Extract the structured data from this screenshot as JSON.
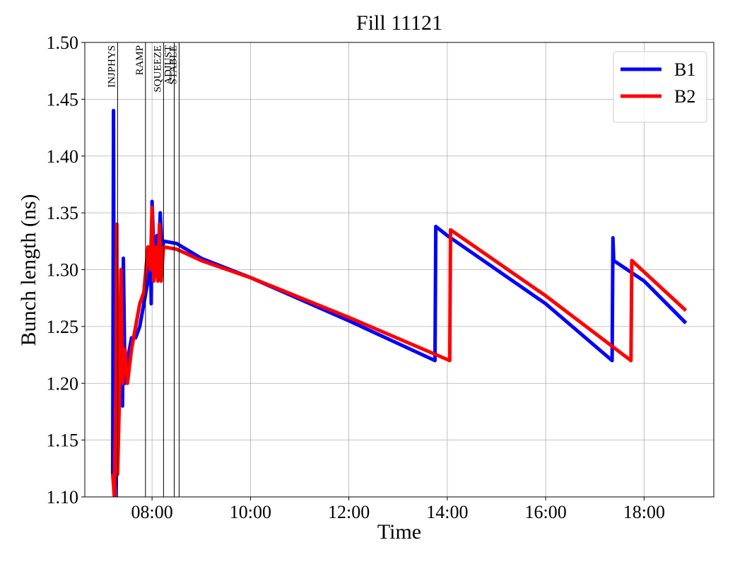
{
  "chart_data": {
    "type": "line",
    "title": "Fill 11121",
    "x_label": "Time",
    "y_label": "Bunch length (ns)",
    "xlim": [
      "06:38",
      "19:25"
    ],
    "xticks": [
      "08:00",
      "10:00",
      "12:00",
      "14:00",
      "16:00",
      "18:00"
    ],
    "ylim": [
      1.1,
      1.5
    ],
    "yticks": [
      {
        "value": 1.1,
        "label": "1.10"
      },
      1.15,
      {
        "value": 1.2,
        "label": "1.20"
      },
      1.25,
      {
        "value": 1.3,
        "label": "1.30"
      },
      1.35,
      {
        "value": 1.4,
        "label": "1.40"
      },
      1.45,
      {
        "value": 1.5,
        "label": "1.50"
      }
    ],
    "grid": true,
    "legend": "upper right",
    "annotations": [
      {
        "label": "INJPHYS",
        "x": "07:18"
      },
      {
        "label": "RAMP",
        "x": "07:52"
      },
      {
        "label": "SQUEEZE",
        "x": "08:14"
      },
      {
        "label": "ADJUST",
        "x": "08:27"
      },
      {
        "label": "STABLE",
        "x": "08:33"
      }
    ],
    "series": [
      {
        "name": "B1",
        "color": "#0000ff",
        "x": [
          "07:12",
          "07:13",
          "07:14",
          "07:15",
          "07:17",
          "07:20",
          "07:24",
          "07:25",
          "07:27",
          "07:30",
          "07:35",
          "07:40",
          "07:45",
          "07:50",
          "07:55",
          "07:58",
          "07:59",
          "08:00",
          "08:03",
          "08:06",
          "08:08",
          "08:10",
          "08:12",
          "08:15",
          "08:30",
          "09:00",
          "10:00",
          "12:00",
          "13:45",
          "13:46",
          "14:00",
          "16:00",
          "17:21",
          "17:22",
          "17:23",
          "18:00",
          "18:51"
        ],
        "values": [
          1.12,
          1.44,
          1.13,
          1.1,
          1.15,
          1.2,
          1.18,
          1.31,
          1.2,
          1.22,
          1.24,
          1.24,
          1.25,
          1.27,
          1.29,
          1.32,
          1.27,
          1.36,
          1.3,
          1.33,
          1.31,
          1.35,
          1.32,
          1.325,
          1.323,
          1.31,
          1.293,
          1.255,
          1.22,
          1.338,
          1.33,
          1.27,
          1.22,
          1.328,
          1.308,
          1.29,
          1.253
        ]
      },
      {
        "name": "B2",
        "color": "#ff0000",
        "x": [
          "07:12",
          "07:14",
          "07:16",
          "07:17",
          "07:18",
          "07:20",
          "07:22",
          "07:24",
          "07:27",
          "07:30",
          "07:35",
          "07:40",
          "07:45",
          "07:50",
          "07:55",
          "07:58",
          "08:00",
          "08:02",
          "08:05",
          "08:07",
          "08:09",
          "08:11",
          "08:14",
          "08:30",
          "09:00",
          "10:00",
          "12:00",
          "14:03",
          "14:04",
          "16:00",
          "17:44",
          "17:45",
          "18:51"
        ],
        "values": [
          1.12,
          1.1,
          1.2,
          1.34,
          1.12,
          1.18,
          1.3,
          1.2,
          1.23,
          1.2,
          1.23,
          1.25,
          1.27,
          1.28,
          1.32,
          1.3,
          1.355,
          1.29,
          1.32,
          1.29,
          1.34,
          1.29,
          1.32,
          1.318,
          1.308,
          1.293,
          1.258,
          1.22,
          1.335,
          1.277,
          1.22,
          1.308,
          1.264
        ]
      }
    ]
  }
}
